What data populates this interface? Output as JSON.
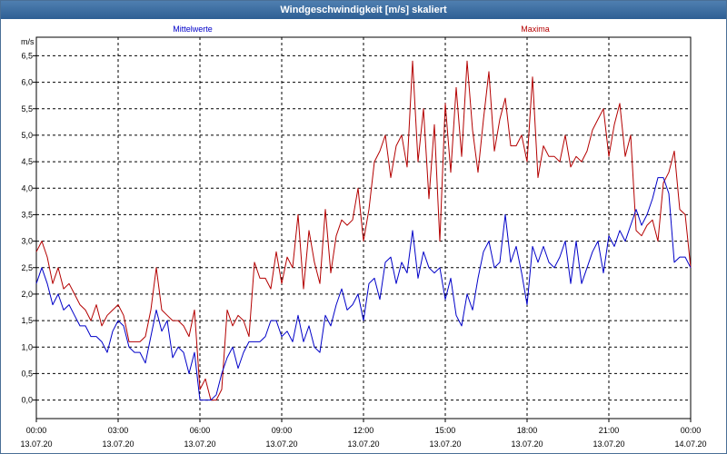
{
  "window": {
    "title": "Windgeschwindigkeit [m/s] skaliert"
  },
  "colors": {
    "title_bar": "#2e5f94",
    "mittelwerte": "#0000c8",
    "maxima": "#b40000",
    "grid": "#000000"
  },
  "chart_data": {
    "type": "line",
    "title": "Windgeschwindigkeit [m/s] skaliert",
    "ylabel": "m/s",
    "ylim": [
      -0.35,
      6.85
    ],
    "y_ticks": [
      "0,0",
      "0,5",
      "1,0",
      "1,5",
      "2,0",
      "2,5",
      "3,0",
      "3,5",
      "4,0",
      "4,5",
      "5,0",
      "5,5",
      "6,0",
      "6,5"
    ],
    "x_range_hours": [
      0,
      24
    ],
    "x_ticks": [
      {
        "time": "00:00",
        "date": "13.07.20"
      },
      {
        "time": "03:00",
        "date": "13.07.20"
      },
      {
        "time": "06:00",
        "date": "13.07.20"
      },
      {
        "time": "09:00",
        "date": "13.07.20"
      },
      {
        "time": "12:00",
        "date": "13.07.20"
      },
      {
        "time": "15:00",
        "date": "13.07.20"
      },
      {
        "time": "18:00",
        "date": "13.07.20"
      },
      {
        "time": "21:00",
        "date": "13.07.20"
      },
      {
        "time": "00:00",
        "date": "14.07.20"
      }
    ],
    "grid": true,
    "series": [
      {
        "name": "Mittelwerte",
        "points": [
          [
            0,
            2.2
          ],
          [
            0.2,
            2.5
          ],
          [
            0.4,
            2.2
          ],
          [
            0.6,
            1.8
          ],
          [
            0.8,
            2.0
          ],
          [
            1.0,
            1.7
          ],
          [
            1.2,
            1.8
          ],
          [
            1.4,
            1.6
          ],
          [
            1.6,
            1.4
          ],
          [
            1.8,
            1.4
          ],
          [
            2.0,
            1.2
          ],
          [
            2.2,
            1.2
          ],
          [
            2.4,
            1.1
          ],
          [
            2.6,
            0.9
          ],
          [
            2.8,
            1.3
          ],
          [
            3.0,
            1.5
          ],
          [
            3.2,
            1.4
          ],
          [
            3.4,
            1.0
          ],
          [
            3.6,
            0.9
          ],
          [
            3.8,
            0.9
          ],
          [
            4.0,
            0.7
          ],
          [
            4.2,
            1.2
          ],
          [
            4.4,
            1.7
          ],
          [
            4.6,
            1.3
          ],
          [
            4.8,
            1.5
          ],
          [
            5.0,
            0.8
          ],
          [
            5.2,
            1.0
          ],
          [
            5.4,
            0.9
          ],
          [
            5.6,
            0.5
          ],
          [
            5.8,
            0.9
          ],
          [
            6.0,
            0.0
          ],
          [
            6.2,
            0.0
          ],
          [
            6.4,
            0.0
          ],
          [
            6.6,
            0.1
          ],
          [
            6.8,
            0.5
          ],
          [
            7.0,
            0.8
          ],
          [
            7.2,
            1.0
          ],
          [
            7.4,
            0.6
          ],
          [
            7.6,
            0.9
          ],
          [
            7.8,
            1.1
          ],
          [
            8.0,
            1.1
          ],
          [
            8.2,
            1.1
          ],
          [
            8.4,
            1.2
          ],
          [
            8.6,
            1.5
          ],
          [
            8.8,
            1.5
          ],
          [
            9.0,
            1.2
          ],
          [
            9.2,
            1.3
          ],
          [
            9.4,
            1.1
          ],
          [
            9.6,
            1.6
          ],
          [
            9.8,
            1.1
          ],
          [
            10.0,
            1.4
          ],
          [
            10.2,
            1.0
          ],
          [
            10.4,
            0.9
          ],
          [
            10.6,
            1.6
          ],
          [
            10.8,
            1.4
          ],
          [
            11.0,
            1.8
          ],
          [
            11.2,
            2.1
          ],
          [
            11.4,
            1.7
          ],
          [
            11.6,
            1.8
          ],
          [
            11.8,
            2.0
          ],
          [
            12.0,
            1.5
          ],
          [
            12.2,
            2.2
          ],
          [
            12.4,
            2.3
          ],
          [
            12.6,
            1.9
          ],
          [
            12.8,
            2.6
          ],
          [
            13.0,
            2.7
          ],
          [
            13.2,
            2.2
          ],
          [
            13.4,
            2.6
          ],
          [
            13.6,
            2.4
          ],
          [
            13.8,
            3.2
          ],
          [
            14.0,
            2.3
          ],
          [
            14.2,
            2.8
          ],
          [
            14.4,
            2.5
          ],
          [
            14.6,
            2.4
          ],
          [
            14.8,
            2.5
          ],
          [
            15.0,
            1.9
          ],
          [
            15.2,
            2.3
          ],
          [
            15.4,
            1.6
          ],
          [
            15.6,
            1.4
          ],
          [
            15.8,
            2.0
          ],
          [
            16.0,
            1.7
          ],
          [
            16.2,
            2.3
          ],
          [
            16.4,
            2.8
          ],
          [
            16.6,
            3.0
          ],
          [
            16.8,
            2.5
          ],
          [
            17.0,
            2.6
          ],
          [
            17.2,
            3.5
          ],
          [
            17.4,
            2.6
          ],
          [
            17.6,
            2.9
          ],
          [
            17.8,
            2.4
          ],
          [
            18.0,
            1.8
          ],
          [
            18.2,
            2.9
          ],
          [
            18.4,
            2.6
          ],
          [
            18.6,
            2.9
          ],
          [
            18.8,
            2.6
          ],
          [
            19.0,
            2.5
          ],
          [
            19.2,
            2.7
          ],
          [
            19.4,
            3.0
          ],
          [
            19.6,
            2.2
          ],
          [
            19.8,
            3.0
          ],
          [
            20.0,
            2.2
          ],
          [
            20.2,
            2.5
          ],
          [
            20.4,
            2.8
          ],
          [
            20.6,
            3.0
          ],
          [
            20.8,
            2.4
          ],
          [
            21.0,
            3.1
          ],
          [
            21.2,
            2.9
          ],
          [
            21.4,
            3.2
          ],
          [
            21.6,
            3.0
          ],
          [
            21.8,
            3.3
          ],
          [
            22.0,
            3.6
          ],
          [
            22.2,
            3.3
          ],
          [
            22.4,
            3.5
          ],
          [
            22.6,
            3.8
          ],
          [
            22.8,
            4.2
          ],
          [
            23.0,
            4.2
          ],
          [
            23.2,
            3.9
          ],
          [
            23.4,
            2.6
          ],
          [
            23.6,
            2.7
          ],
          [
            23.8,
            2.7
          ],
          [
            24.0,
            2.5
          ]
        ]
      },
      {
        "name": "Maxima",
        "points": [
          [
            0,
            2.8
          ],
          [
            0.2,
            3.0
          ],
          [
            0.4,
            2.7
          ],
          [
            0.6,
            2.2
          ],
          [
            0.8,
            2.5
          ],
          [
            1.0,
            2.1
          ],
          [
            1.2,
            2.2
          ],
          [
            1.4,
            2.0
          ],
          [
            1.6,
            1.8
          ],
          [
            1.8,
            1.7
          ],
          [
            2.0,
            1.5
          ],
          [
            2.2,
            1.8
          ],
          [
            2.4,
            1.4
          ],
          [
            2.6,
            1.6
          ],
          [
            2.8,
            1.7
          ],
          [
            3.0,
            1.8
          ],
          [
            3.2,
            1.6
          ],
          [
            3.4,
            1.1
          ],
          [
            3.6,
            1.1
          ],
          [
            3.8,
            1.1
          ],
          [
            4.0,
            1.2
          ],
          [
            4.2,
            1.7
          ],
          [
            4.4,
            2.5
          ],
          [
            4.6,
            1.7
          ],
          [
            4.8,
            1.6
          ],
          [
            5.0,
            1.5
          ],
          [
            5.2,
            1.5
          ],
          [
            5.4,
            1.4
          ],
          [
            5.6,
            1.2
          ],
          [
            5.8,
            1.7
          ],
          [
            6.0,
            0.2
          ],
          [
            6.2,
            0.4
          ],
          [
            6.4,
            0.0
          ],
          [
            6.6,
            0.0
          ],
          [
            6.8,
            0.2
          ],
          [
            7.0,
            1.7
          ],
          [
            7.2,
            1.4
          ],
          [
            7.4,
            1.6
          ],
          [
            7.6,
            1.5
          ],
          [
            7.8,
            1.2
          ],
          [
            8.0,
            2.6
          ],
          [
            8.2,
            2.3
          ],
          [
            8.4,
            2.3
          ],
          [
            8.6,
            2.1
          ],
          [
            8.8,
            2.8
          ],
          [
            9.0,
            2.2
          ],
          [
            9.2,
            2.7
          ],
          [
            9.4,
            2.5
          ],
          [
            9.6,
            3.5
          ],
          [
            9.8,
            2.1
          ],
          [
            10.0,
            3.2
          ],
          [
            10.2,
            2.6
          ],
          [
            10.4,
            2.2
          ],
          [
            10.6,
            3.6
          ],
          [
            10.8,
            2.4
          ],
          [
            11.0,
            3.1
          ],
          [
            11.2,
            3.4
          ],
          [
            11.4,
            3.3
          ],
          [
            11.6,
            3.4
          ],
          [
            11.8,
            4.0
          ],
          [
            12.0,
            3.0
          ],
          [
            12.2,
            3.6
          ],
          [
            12.4,
            4.5
          ],
          [
            12.6,
            4.7
          ],
          [
            12.8,
            5.0
          ],
          [
            13.0,
            4.2
          ],
          [
            13.2,
            4.8
          ],
          [
            13.4,
            5.0
          ],
          [
            13.6,
            4.4
          ],
          [
            13.8,
            6.4
          ],
          [
            14.0,
            4.5
          ],
          [
            14.2,
            5.5
          ],
          [
            14.4,
            3.8
          ],
          [
            14.6,
            5.2
          ],
          [
            14.8,
            3.0
          ],
          [
            15.0,
            5.6
          ],
          [
            15.2,
            4.3
          ],
          [
            15.4,
            5.9
          ],
          [
            15.6,
            4.6
          ],
          [
            15.8,
            6.4
          ],
          [
            16.0,
            5.1
          ],
          [
            16.2,
            4.3
          ],
          [
            16.4,
            5.3
          ],
          [
            16.6,
            6.2
          ],
          [
            16.8,
            4.7
          ],
          [
            17.0,
            5.3
          ],
          [
            17.2,
            5.7
          ],
          [
            17.4,
            4.8
          ],
          [
            17.6,
            4.8
          ],
          [
            17.8,
            5.0
          ],
          [
            18.0,
            4.5
          ],
          [
            18.2,
            6.1
          ],
          [
            18.4,
            4.2
          ],
          [
            18.6,
            4.8
          ],
          [
            18.8,
            4.6
          ],
          [
            19.0,
            4.6
          ],
          [
            19.2,
            4.5
          ],
          [
            19.4,
            5.0
          ],
          [
            19.6,
            4.4
          ],
          [
            19.8,
            4.6
          ],
          [
            20.0,
            4.5
          ],
          [
            20.2,
            4.7
          ],
          [
            20.4,
            5.1
          ],
          [
            20.6,
            5.3
          ],
          [
            20.8,
            5.5
          ],
          [
            21.0,
            4.6
          ],
          [
            21.2,
            5.2
          ],
          [
            21.4,
            5.6
          ],
          [
            21.6,
            4.6
          ],
          [
            21.8,
            5.0
          ],
          [
            22.0,
            3.2
          ],
          [
            22.2,
            3.1
          ],
          [
            22.4,
            3.3
          ],
          [
            22.6,
            3.4
          ],
          [
            22.8,
            3.0
          ],
          [
            23.0,
            4.1
          ],
          [
            23.2,
            4.3
          ],
          [
            23.4,
            4.7
          ],
          [
            23.6,
            3.6
          ],
          [
            23.8,
            3.5
          ],
          [
            24.0,
            2.5
          ]
        ]
      }
    ]
  }
}
